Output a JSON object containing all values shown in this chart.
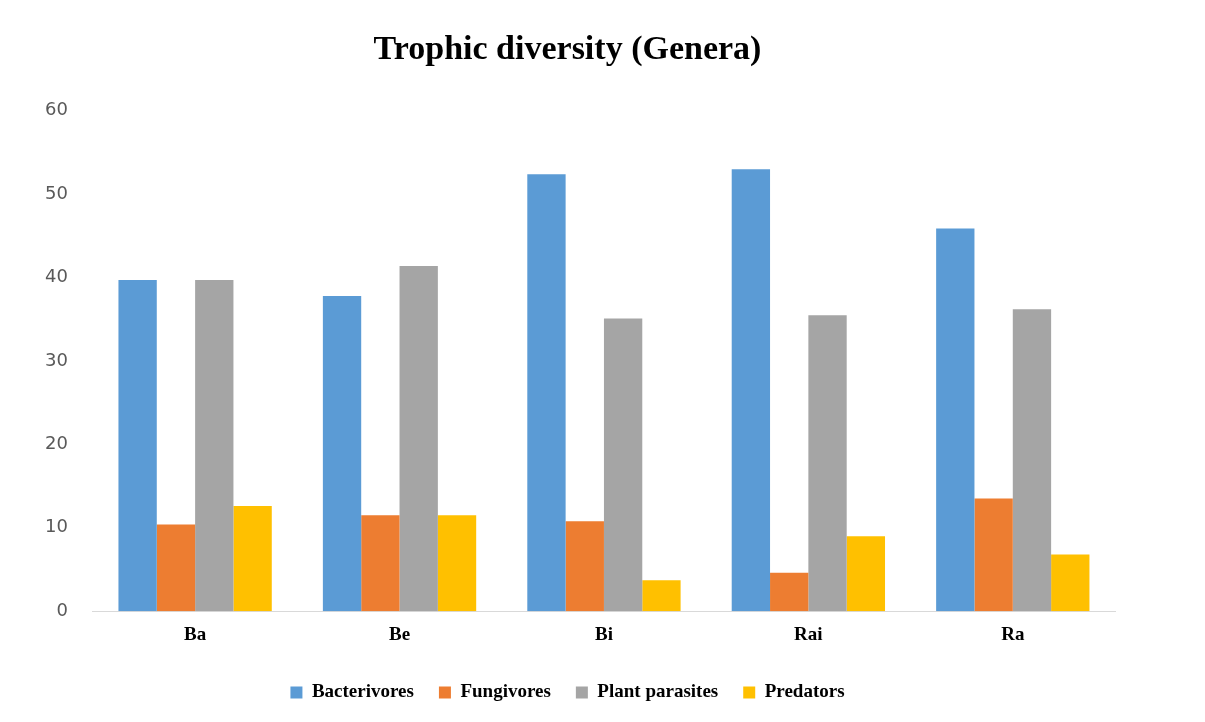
{
  "chart_data": {
    "type": "bar",
    "title": "Trophic diversity (Genera)",
    "categories": [
      "Ba",
      "Be",
      "Bi",
      "Rai",
      "Ra"
    ],
    "series": [
      {
        "name": "Bacterivores",
        "color": "#5b9bd5",
        "values": [
          39.7,
          37.8,
          52.4,
          53,
          45.9
        ]
      },
      {
        "name": "Fungivores",
        "color": "#ed7d31",
        "values": [
          10.4,
          11.5,
          10.8,
          4.6,
          13.5
        ]
      },
      {
        "name": "Plant parasites",
        "color": "#a5a5a5",
        "values": [
          39.7,
          41.4,
          35.1,
          35.5,
          36.2
        ]
      },
      {
        "name": "Predators",
        "color": "#ffc000",
        "values": [
          12.6,
          11.5,
          3.7,
          9,
          6.8
        ]
      }
    ],
    "ylim": [
      0,
      60
    ],
    "yticks": [
      0,
      10,
      20,
      30,
      40,
      50,
      60
    ],
    "grid": false,
    "legend": "bottom"
  }
}
